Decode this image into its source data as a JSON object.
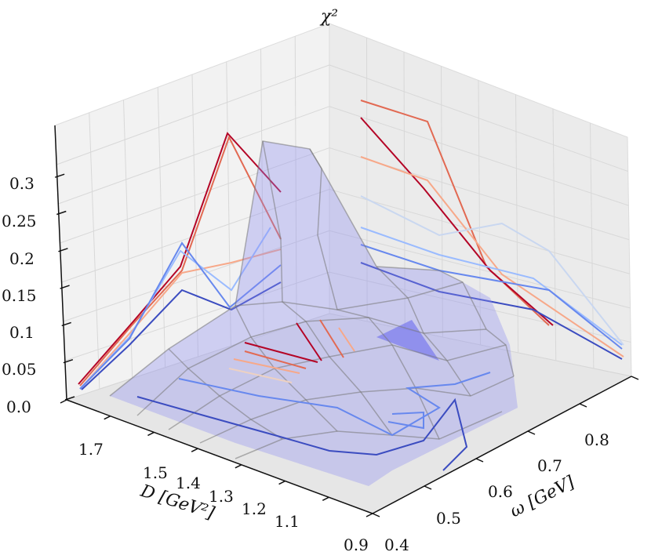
{
  "chart_data": {
    "type": "surface3d",
    "axes": {
      "x_label": "D [GeV²]",
      "y_label": "ω [GeV]",
      "z_label": "χ²",
      "x_ticks": [
        "1.7",
        "1.5",
        "1.4",
        "1.3",
        "1.2",
        "1.1",
        "0.9"
      ],
      "y_ticks": [
        "0.4",
        "0.5",
        "0.6",
        "0.7",
        "0.8"
      ],
      "z_ticks": [
        "0.0",
        "0.05",
        "0.1",
        "0.15",
        "0.2",
        "0.25",
        "0.3"
      ],
      "x_range": [
        0.9,
        1.7
      ],
      "y_range": [
        0.4,
        0.8
      ],
      "z_range": [
        0.0,
        0.35
      ]
    },
    "surface_color": "#8c8cf0",
    "grid": true,
    "contours": {
      "colormap": [
        "#3b4cc0",
        "#6788ee",
        "#9abbff",
        "#c9d7f0",
        "#edd1c2",
        "#f7a889",
        "#e26952",
        "#b40426"
      ],
      "projections": [
        "x-wall",
        "y-wall",
        "floor"
      ]
    }
  }
}
